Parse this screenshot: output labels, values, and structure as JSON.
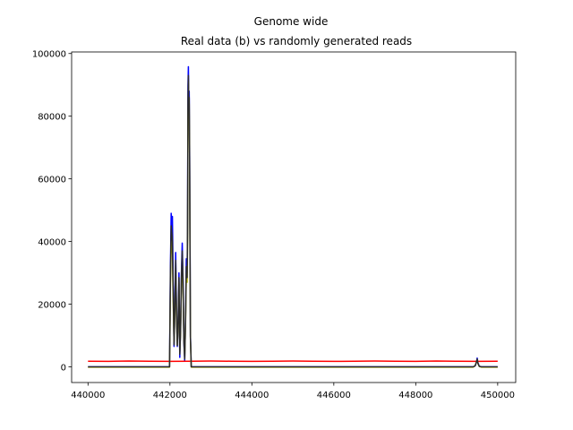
{
  "chart_data": {
    "type": "line",
    "title": "Genome wide",
    "subtitle": "Real data (b) vs randomly generated reads",
    "xlabel": "",
    "ylabel": "",
    "xlim": [
      439600,
      450440
    ],
    "ylim": [
      -5000,
      100500
    ],
    "xticks": [
      440000,
      442000,
      444000,
      446000,
      448000,
      450000
    ],
    "yticks": [
      0,
      20000,
      40000,
      60000,
      80000,
      100000
    ],
    "grid": false,
    "series": [
      {
        "color": "#0000ff",
        "x": [
          440000,
          441990,
          442000,
          442010,
          442030,
          442050,
          442060,
          442080,
          442100,
          442120,
          442140,
          442160,
          442180,
          442200,
          442220,
          442240,
          442260,
          442280,
          442300,
          442320,
          442340,
          442360,
          442380,
          442400,
          442420,
          442430,
          442440,
          442450,
          442460,
          442470,
          442480,
          442490,
          442500,
          442520,
          442560,
          449400,
          449450,
          449480,
          449500,
          449520,
          449550,
          449600,
          450000
        ],
        "y": [
          0,
          0,
          15000,
          30000,
          49000,
          45000,
          48000,
          26000,
          6500,
          20000,
          36500,
          18000,
          6500,
          15000,
          30000,
          3000,
          12000,
          30000,
          39500,
          28000,
          8000,
          2000,
          15000,
          34500,
          30000,
          47000,
          90000,
          95800,
          86000,
          88000,
          70000,
          40000,
          10000,
          0,
          0,
          0,
          300,
          1400,
          2800,
          1200,
          200,
          0,
          0
        ]
      },
      {
        "color": "#ff0000",
        "x": [
          440000,
          440500,
          441000,
          441500,
          442000,
          442500,
          443000,
          443500,
          444000,
          444500,
          445000,
          445500,
          446000,
          446500,
          447000,
          447500,
          448000,
          448500,
          449000,
          449500,
          450000
        ],
        "y": [
          1800,
          1750,
          1850,
          1800,
          1750,
          1800,
          1850,
          1800,
          1750,
          1800,
          1850,
          1800,
          1750,
          1800,
          1850,
          1800,
          1750,
          1850,
          1800,
          1750,
          1800
        ]
      },
      {
        "color": "#bfbf00",
        "x": [
          440000,
          441990,
          442000,
          442010,
          442030,
          442050,
          442060,
          442080,
          442100,
          442120,
          442140,
          442160,
          442180,
          442200,
          442220,
          442240,
          442260,
          442280,
          442300,
          442320,
          442340,
          442360,
          442380,
          442400,
          442420,
          442430,
          442440,
          442450,
          442460,
          442470,
          442480,
          442490,
          442500,
          442520,
          442560,
          449400,
          449450,
          449480,
          449500,
          449520,
          449550,
          449600,
          450000
        ],
        "y": [
          -100,
          -100,
          12000,
          25000,
          40500,
          38000,
          36000,
          20000,
          8000,
          18000,
          32000,
          16000,
          7000,
          14000,
          27000,
          5000,
          11000,
          27000,
          35000,
          25000,
          9000,
          3000,
          13000,
          30000,
          27000,
          40000,
          80000,
          91000,
          82000,
          84000,
          65000,
          36000,
          9000,
          -100,
          -100,
          -100,
          400,
          1500,
          2200,
          1000,
          150,
          -100,
          -100
        ]
      },
      {
        "color": "#2b2b2b",
        "x": [
          440000,
          441990,
          442000,
          442010,
          442030,
          442050,
          442060,
          442080,
          442100,
          442120,
          442140,
          442160,
          442180,
          442200,
          442220,
          442240,
          442260,
          442280,
          442300,
          442320,
          442340,
          442360,
          442380,
          442400,
          442420,
          442430,
          442440,
          442450,
          442460,
          442470,
          442480,
          442490,
          442500,
          442520,
          442560,
          449400,
          449450,
          449480,
          449500,
          449520,
          449550,
          449600,
          450000
        ],
        "y": [
          0,
          0,
          13000,
          27000,
          45000,
          42000,
          40000,
          23000,
          7000,
          19000,
          34000,
          17000,
          6800,
          14500,
          28500,
          4000,
          11500,
          28500,
          37000,
          26500,
          8500,
          2500,
          14000,
          32000,
          28500,
          43000,
          85000,
          93000,
          84000,
          86000,
          67000,
          38000,
          9500,
          0,
          0,
          0,
          350,
          1450,
          2500,
          1100,
          180,
          0,
          0
        ]
      }
    ]
  }
}
